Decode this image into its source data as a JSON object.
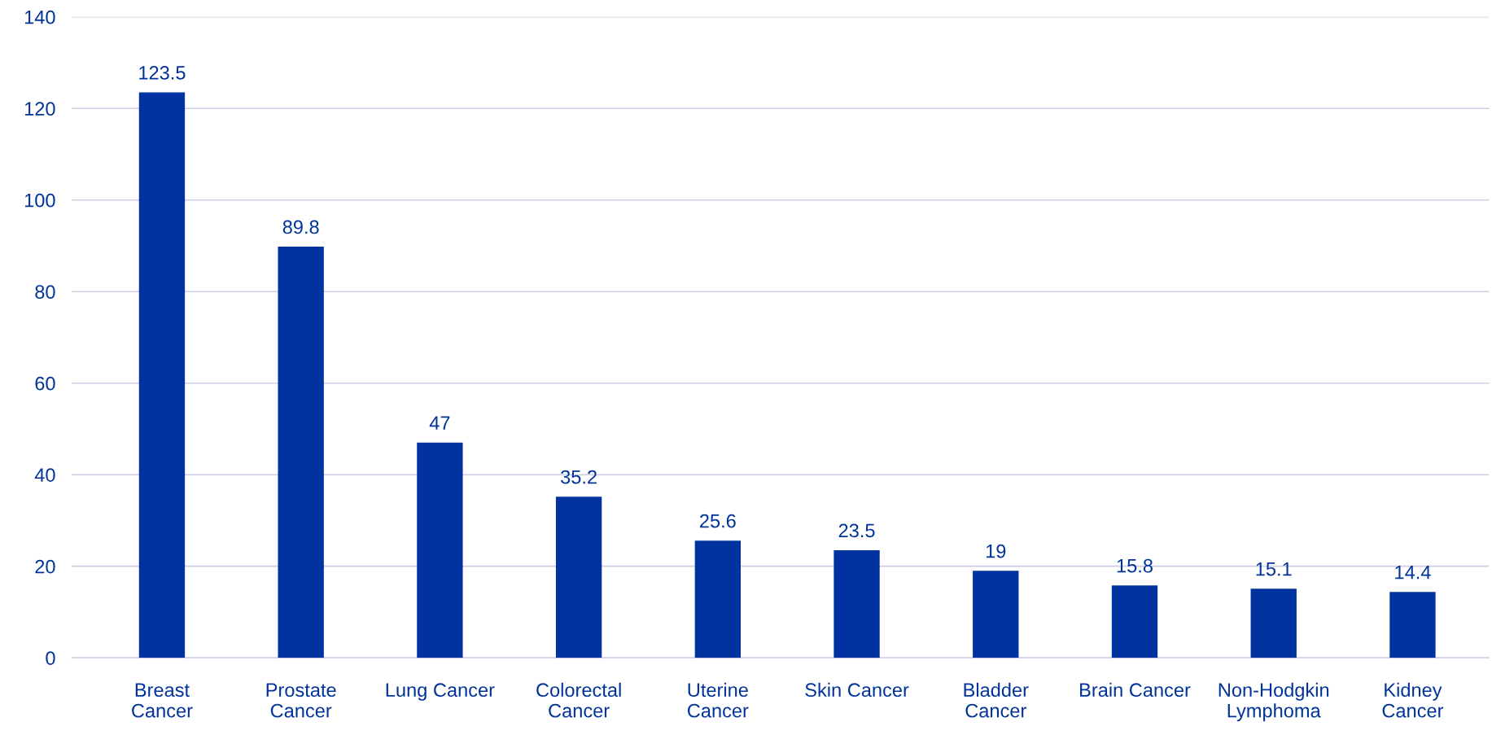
{
  "chart_data": {
    "type": "bar",
    "categories": [
      "Breast Cancer",
      "Prostate Cancer",
      "Lung Cancer",
      "Colorectal Cancer",
      "Uterine Cancer",
      "Skin Cancer",
      "Bladder Cancer",
      "Brain Cancer",
      "Non-Hodgkin Lymphoma",
      "Kidney Cancer"
    ],
    "values": [
      123.5,
      89.8,
      47,
      35.2,
      25.6,
      23.5,
      19,
      15.8,
      15.1,
      14.4
    ],
    "color": "#0033a0",
    "ylim": [
      0,
      140
    ],
    "yticks": [
      0,
      20,
      40,
      60,
      80,
      100,
      120,
      140
    ],
    "grid": "y",
    "data_labels": true
  }
}
